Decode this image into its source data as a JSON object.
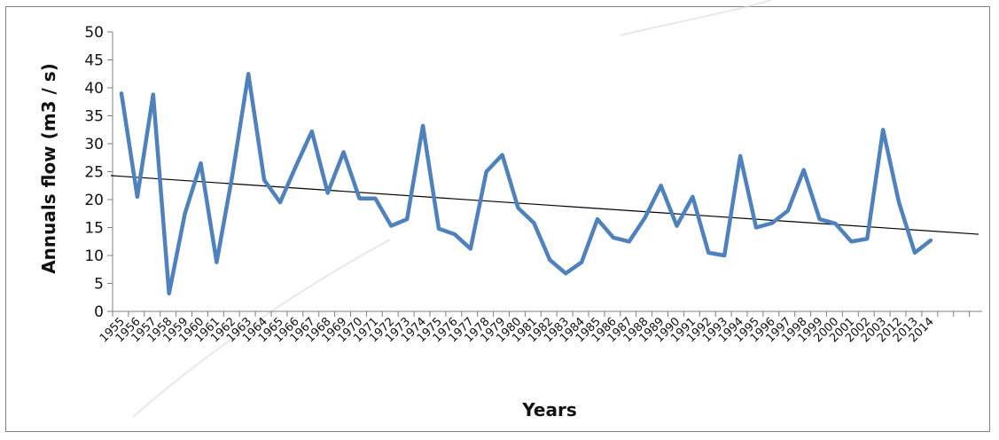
{
  "chart_data": {
    "type": "line",
    "title": "",
    "xlabel": "Years",
    "ylabel": "Annuals flow (m3 / s)",
    "ylim": [
      0,
      50
    ],
    "yticks": [
      0,
      5,
      10,
      15,
      20,
      25,
      30,
      35,
      40,
      45,
      50
    ],
    "x_tick_labels": [
      "1955",
      "1956",
      "1957",
      "1958",
      "1959",
      "1960",
      "1961",
      "1962",
      "1963",
      "1964",
      "1965",
      "1966",
      "1967",
      "1968",
      "1969",
      "1970",
      "1971",
      "1972",
      "1973",
      "1974",
      "1975",
      "1976",
      "1977",
      "1978",
      "1979",
      "1980",
      "1981",
      "1982",
      "1983",
      "1984",
      "1985",
      "1986",
      "1987",
      "1988",
      "1989",
      "1990",
      "1991",
      "1992",
      "1993",
      "1994",
      "1995",
      "1996",
      "1997",
      "1998",
      "1999",
      "2000",
      "2001",
      "2002",
      "2003",
      "2012",
      "2013",
      "2014"
    ],
    "grid": false,
    "series": [
      {
        "color": "#4f81bd",
        "values": [
          39,
          20.5,
          38.8,
          3.2,
          17.5,
          26.5,
          8.8,
          24.5,
          42.5,
          23.5,
          19.5,
          26,
          32.2,
          21.2,
          28.5,
          20.2,
          20.2,
          15.3,
          16.5,
          33.2,
          14.8,
          13.8,
          11.2,
          25,
          28,
          18.5,
          15.8,
          9.2,
          6.8,
          8.8,
          16.5,
          13.2,
          12.5,
          16.8,
          22.5,
          15.3,
          20.5,
          10.5,
          10,
          27.8,
          15,
          15.8,
          18,
          25.3,
          16.5,
          15.7,
          12.5,
          13,
          32.5,
          19.5,
          10.5,
          12.7
        ]
      }
    ],
    "trendline": {
      "color": "#000000",
      "start": 24.3,
      "end": 13.8,
      "x_span_points": 56
    }
  },
  "watermark": {
    "color": "#d9d9d9"
  }
}
